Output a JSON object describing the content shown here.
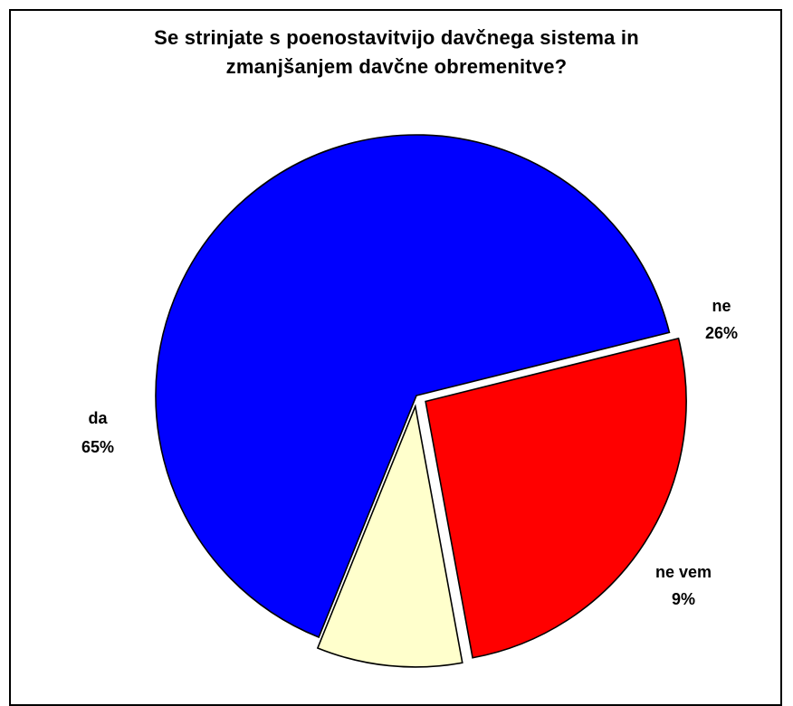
{
  "chart_data": {
    "type": "pie",
    "title_lines": [
      "Se strinjate s poenostavitvijo davčnega sistema in",
      "zmanjšanjem davčne obremenitve?"
    ],
    "slices": [
      {
        "name": "da",
        "value": 65,
        "label": "65%",
        "color": "#0000FF"
      },
      {
        "name": "ne",
        "value": 26,
        "label": "26%",
        "color": "#FF0000"
      },
      {
        "name": "ne vem",
        "value": 9,
        "label": "9%",
        "color": "#FFFFCC"
      }
    ],
    "exploded": [
      "ne",
      "ne vem"
    ],
    "legend": "none"
  }
}
